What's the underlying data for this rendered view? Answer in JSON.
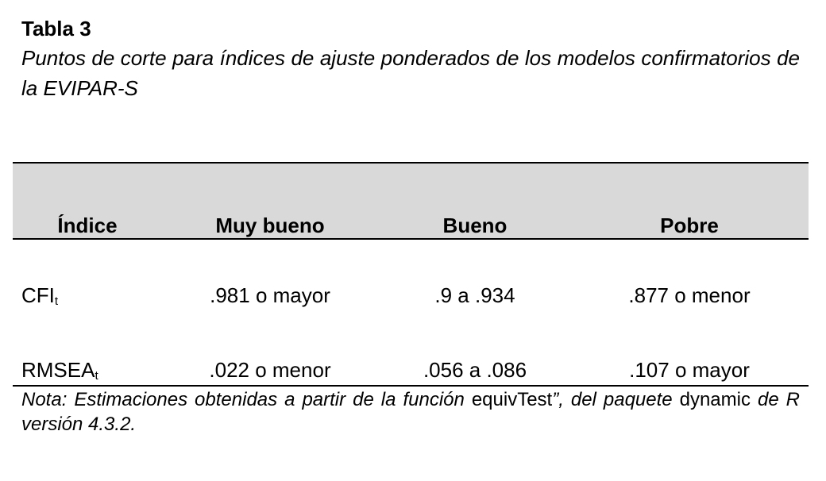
{
  "title": "Tabla 3",
  "caption": "Puntos de corte para índices de ajuste ponderados de los modelos confirmatorios de la EVIPAR-S",
  "table": {
    "headers": [
      "Índice",
      "Muy bueno",
      "Bueno",
      "Pobre"
    ],
    "rows": [
      {
        "index": "CFI",
        "index_sub": "t",
        "muy_bueno": ".981 o mayor",
        "bueno": ".9 a .934",
        "pobre": ".877 o menor"
      },
      {
        "index": "RMSEA",
        "index_sub": "t",
        "muy_bueno": ".022 o menor",
        "bueno": ".056 a .086",
        "pobre": ".107 o mayor"
      }
    ]
  },
  "note": {
    "part1": "Nota: Estimaciones obtenidas a partir de la función ",
    "part2": "equivTest",
    "part3": "”, del paquete ",
    "part4": "dynamic",
    "part5": " de R versión 4.3.2."
  }
}
